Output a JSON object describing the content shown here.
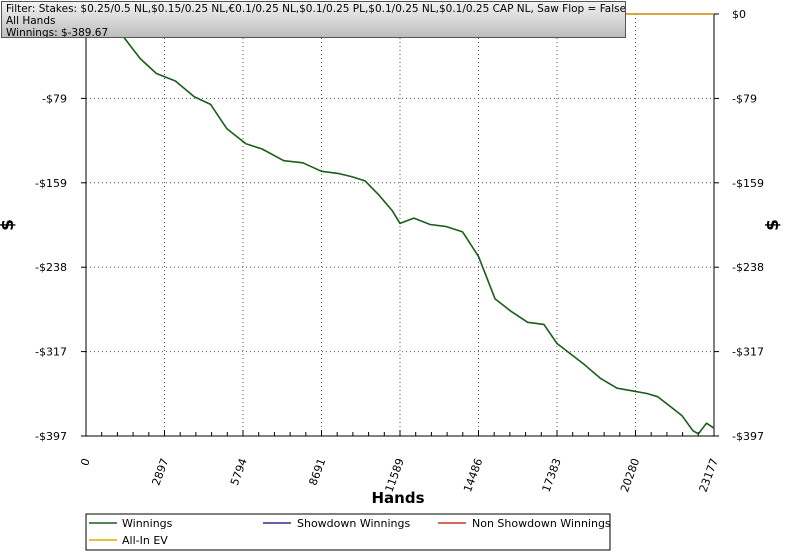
{
  "filter": {
    "line1": "Filter: Stakes: $0.25/0.5 NL,$0.15/0.25 NL,€0.1/0.25 NL,$0.1/0.25 PL,$0.1/0.25 NL,$0.1/0.25 CAP NL, Saw Flop = False",
    "line2": "All Hands",
    "line3": "Winnings: $-389.67"
  },
  "colors": {
    "winnings": "#1a5e1a",
    "showdown": "#2f2f8f",
    "non_showdown": "#c0392b",
    "allin_ev": "#e6a800",
    "grid": "#555555"
  },
  "chart_data": {
    "type": "line",
    "xlabel": "Hands",
    "ylabel": "$",
    "xlim": [
      0,
      23177
    ],
    "ylim": [
      -397,
      0
    ],
    "x_ticks": [
      "0",
      "2897",
      "5794",
      "8691",
      "11589",
      "14486",
      "17383",
      "20280",
      "23177"
    ],
    "y_ticks": [
      "$0",
      "-$79",
      "-$159",
      "-$238",
      "-$317",
      "-$397"
    ],
    "grid": true,
    "legend_position": "bottom",
    "series": [
      {
        "name": "Winnings",
        "x": [
          0,
          800,
          1400,
          2000,
          2600,
          3300,
          4000,
          4600,
          5200,
          5900,
          6500,
          7300,
          8000,
          8691,
          9300,
          9800,
          10300,
          10800,
          11300,
          11589,
          12100,
          12700,
          13300,
          13900,
          14486,
          15100,
          15700,
          16300,
          16900,
          17383,
          17900,
          18400,
          19000,
          19600,
          20280,
          20700,
          21100,
          21600,
          22000,
          22400,
          22600,
          22900,
          23177
        ],
        "y": [
          0,
          -8,
          -22,
          -42,
          -56,
          -63,
          -78,
          -85,
          -108,
          -122,
          -127,
          -138,
          -140,
          -148,
          -150,
          -153,
          -157,
          -170,
          -185,
          -197,
          -192,
          -198,
          -200,
          -205,
          -228,
          -268,
          -280,
          -290,
          -292,
          -310,
          -320,
          -330,
          -343,
          -352,
          -355,
          -357,
          -360,
          -370,
          -378,
          -392,
          -395,
          -385,
          -389.67
        ]
      },
      {
        "name": "Showdown Winnings",
        "x": [
          0,
          23177
        ],
        "y": [
          0,
          0
        ]
      },
      {
        "name": "Non Showdown Winnings",
        "x": [
          0,
          23177
        ],
        "y": [
          0,
          0
        ]
      },
      {
        "name": "All-In EV",
        "x": [
          0,
          23177
        ],
        "y": [
          0,
          0
        ]
      }
    ]
  }
}
